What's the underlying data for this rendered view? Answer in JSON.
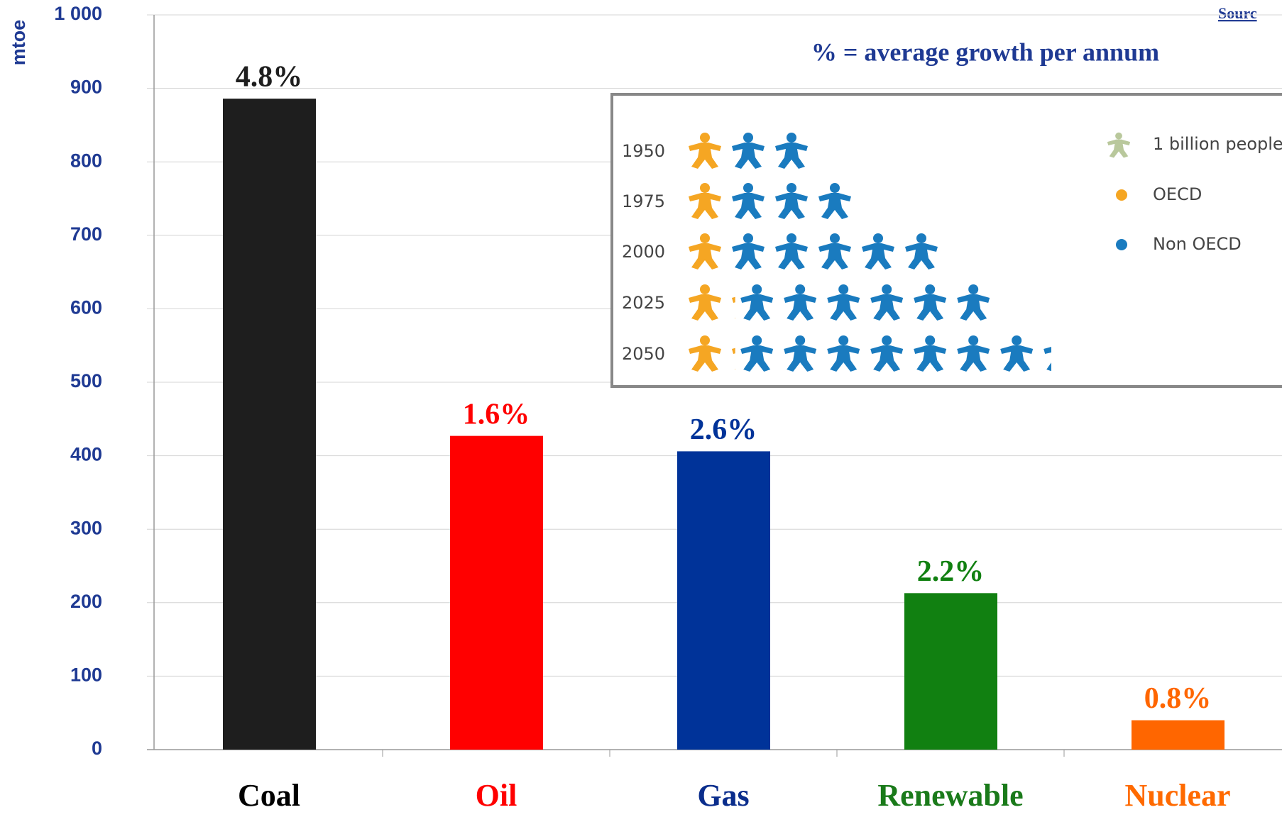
{
  "chart_data": {
    "type": "bar",
    "y_label": "mtoe",
    "annotation": "% = average growth per annum",
    "source": "Sourc",
    "categories": [
      "Coal",
      "Oil",
      "Gas",
      "Renewable",
      "Nuclear"
    ],
    "values": [
      886,
      427,
      406,
      213,
      40
    ],
    "colors": [
      "#1e1e1e",
      "#ff0000",
      "#003399",
      "#118011",
      "#ff6600"
    ],
    "label_colors": [
      "#000000",
      "#ff0000",
      "#0a2d8c",
      "#1a7a1a",
      "#ff6a00"
    ],
    "growth_labels": [
      "4.8%",
      "1.6%",
      "2.6%",
      "2.2%",
      "0.8%"
    ],
    "ylim": [
      0,
      1000
    ],
    "yticks": [
      0,
      100,
      200,
      300,
      400,
      500,
      600,
      700,
      800,
      900,
      {
        "value": 1000,
        "label": "1 000"
      }
    ],
    "grid": true,
    "inset": {
      "years": [
        "1950",
        "1975",
        "2000",
        "2025",
        "2050"
      ],
      "unit_label": "1 billion people",
      "unit_color": "#b9c89c",
      "series": [
        {
          "name": "OECD",
          "color": "#f5a623",
          "values": [
            1,
            1,
            1,
            1.2,
            1.2
          ]
        },
        {
          "name": "Non OECD",
          "color": "#1a7bbf",
          "values": [
            1.9,
            3.1,
            5.1,
            6,
            7.3
          ]
        }
      ]
    }
  }
}
